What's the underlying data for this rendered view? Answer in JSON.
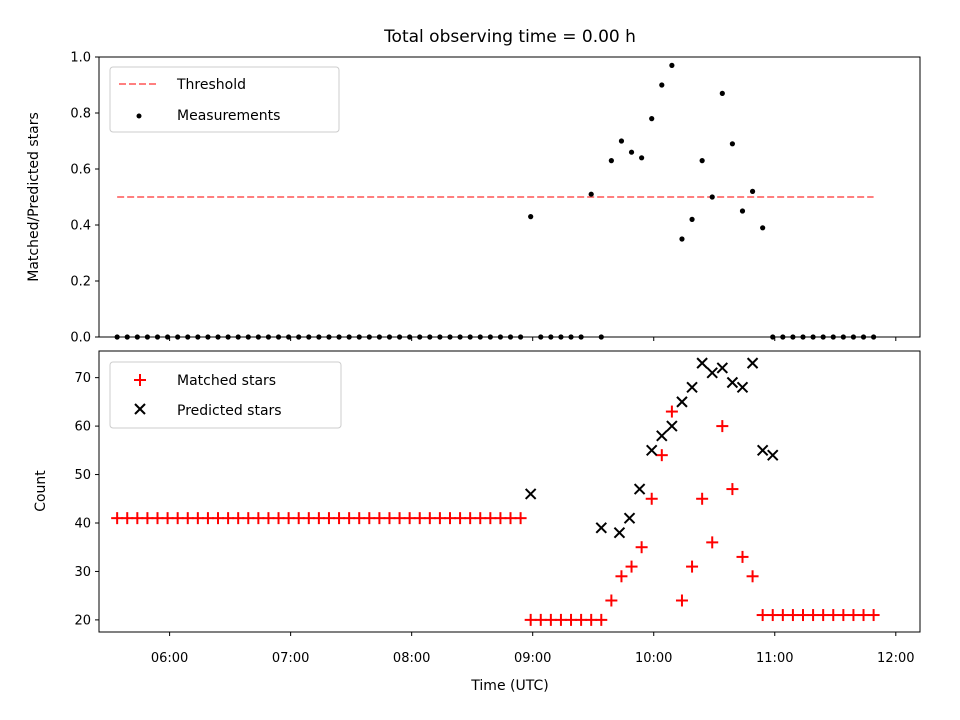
{
  "chart_data": {
    "title": "Total observing time = 0.00 h",
    "xlabel": "Time (UTC)",
    "x_tick_labels": [
      "06:00",
      "07:00",
      "08:00",
      "09:00",
      "10:00",
      "11:00",
      "12:00"
    ],
    "xlim": [
      "05:25",
      "12:12"
    ],
    "panels": [
      {
        "type": "scatter",
        "ylabel": "Matched/Predicted stars",
        "ylim": [
          0.0,
          1.0
        ],
        "y_ticks": [
          "0.0",
          "0.2",
          "0.4",
          "0.6",
          "0.8",
          "1.0"
        ],
        "legend_position": "top-left",
        "threshold": {
          "name": "Threshold",
          "value": 0.5,
          "x_range": [
            "05:34",
            "11:49"
          ],
          "color": "#ff7f7f"
        },
        "series": [
          {
            "name": "Measurements",
            "color": "#000000",
            "x": [
              "05:34",
              "05:39",
              "05:44",
              "05:49",
              "05:54",
              "05:59",
              "06:04",
              "06:09",
              "06:14",
              "06:19",
              "06:24",
              "06:29",
              "06:34",
              "06:39",
              "06:44",
              "06:49",
              "06:54",
              "06:59",
              "07:04",
              "07:09",
              "07:14",
              "07:19",
              "07:24",
              "07:29",
              "07:34",
              "07:39",
              "07:44",
              "07:49",
              "07:54",
              "07:59",
              "08:04",
              "08:09",
              "08:14",
              "08:19",
              "08:24",
              "08:29",
              "08:34",
              "08:39",
              "08:44",
              "08:49",
              "08:54",
              "08:59",
              "09:04",
              "09:09",
              "09:14",
              "09:19",
              "09:24",
              "09:29",
              "09:34",
              "09:39",
              "09:44",
              "09:49",
              "09:54",
              "09:59",
              "10:04",
              "10:09",
              "10:14",
              "10:19",
              "10:24",
              "10:29",
              "10:34",
              "10:39",
              "10:44",
              "10:49",
              "10:54",
              "10:59",
              "11:04",
              "11:09",
              "11:14",
              "11:19",
              "11:24",
              "11:29",
              "11:34",
              "11:39",
              "11:44",
              "11:49"
            ],
            "y": [
              0,
              0,
              0,
              0,
              0,
              0,
              0,
              0,
              0,
              0,
              0,
              0,
              0,
              0,
              0,
              0,
              0,
              0,
              0,
              0,
              0,
              0,
              0,
              0,
              0,
              0,
              0,
              0,
              0,
              0,
              0,
              0,
              0,
              0,
              0,
              0,
              0,
              0,
              0,
              0,
              0,
              0.43,
              0,
              0,
              0,
              0,
              0,
              0.51,
              0,
              0.63,
              0.7,
              0.66,
              0.64,
              0.78,
              0.9,
              0.97,
              0.35,
              0.42,
              0.63,
              0.5,
              0.87,
              0.69,
              0.45,
              0.52,
              0.39,
              0,
              0,
              0,
              0,
              0,
              0,
              0,
              0,
              0,
              0,
              0
            ]
          }
        ]
      },
      {
        "type": "scatter",
        "ylabel": "Count",
        "ylim": [
          17.5,
          75.5
        ],
        "y_ticks": [
          "20",
          "30",
          "40",
          "50",
          "60",
          "70"
        ],
        "legend_position": "top-left",
        "series": [
          {
            "name": "Matched stars",
            "color": "#ff0000",
            "marker": "+",
            "x": [
              "05:34",
              "05:39",
              "05:44",
              "05:49",
              "05:54",
              "05:59",
              "06:04",
              "06:09",
              "06:14",
              "06:19",
              "06:24",
              "06:29",
              "06:34",
              "06:39",
              "06:44",
              "06:49",
              "06:54",
              "06:59",
              "07:04",
              "07:09",
              "07:14",
              "07:19",
              "07:24",
              "07:29",
              "07:34",
              "07:39",
              "07:44",
              "07:49",
              "07:54",
              "07:59",
              "08:04",
              "08:09",
              "08:14",
              "08:19",
              "08:24",
              "08:29",
              "08:34",
              "08:39",
              "08:44",
              "08:49",
              "08:54",
              "08:59",
              "09:04",
              "09:09",
              "09:14",
              "09:19",
              "09:24",
              "09:29",
              "09:34",
              "09:39",
              "09:44",
              "09:49",
              "09:54",
              "09:59",
              "10:04",
              "10:09",
              "10:14",
              "10:19",
              "10:24",
              "10:29",
              "10:34",
              "10:39",
              "10:44",
              "10:49",
              "10:54",
              "10:59",
              "11:04",
              "11:09",
              "11:14",
              "11:19",
              "11:24",
              "11:29",
              "11:34",
              "11:39",
              "11:44",
              "11:49"
            ],
            "y": [
              41,
              41,
              41,
              41,
              41,
              41,
              41,
              41,
              41,
              41,
              41,
              41,
              41,
              41,
              41,
              41,
              41,
              41,
              41,
              41,
              41,
              41,
              41,
              41,
              41,
              41,
              41,
              41,
              41,
              41,
              41,
              41,
              41,
              41,
              41,
              41,
              41,
              41,
              41,
              41,
              41,
              20,
              20,
              20,
              20,
              20,
              20,
              20,
              20,
              24,
              29,
              31,
              35,
              45,
              54,
              63,
              24,
              31,
              45,
              36,
              60,
              47,
              33,
              29,
              21,
              21,
              21,
              21,
              21,
              21,
              21,
              21,
              21,
              21,
              21,
              21
            ]
          },
          {
            "name": "Predicted stars",
            "color": "#000000",
            "marker": "x",
            "x": [
              "08:59",
              "09:34",
              "09:43",
              "09:48",
              "09:53",
              "09:59",
              "10:04",
              "10:09",
              "10:14",
              "10:19",
              "10:24",
              "10:29",
              "10:34",
              "10:39",
              "10:44",
              "10:49",
              "10:54",
              "10:59"
            ],
            "y": [
              46,
              39,
              38,
              41,
              47,
              55,
              58,
              60,
              65,
              68,
              73,
              71,
              72,
              69,
              68,
              73,
              55,
              54
            ]
          }
        ]
      }
    ]
  }
}
